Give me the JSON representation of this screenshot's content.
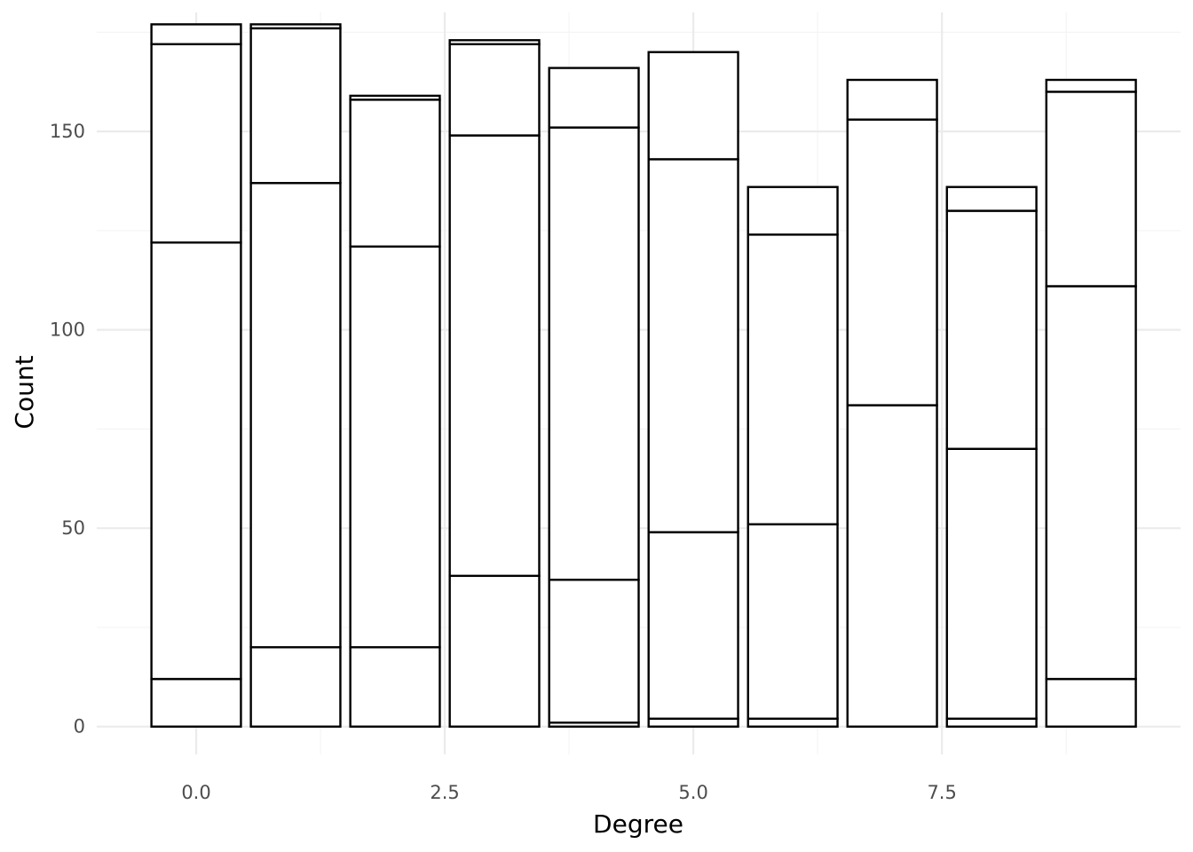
{
  "chart_data": {
    "type": "bar",
    "stacked": true,
    "title": "",
    "xlabel": "Degree",
    "ylabel": "Count",
    "x": [
      0,
      1,
      2,
      3,
      4,
      5,
      6,
      7,
      8,
      9
    ],
    "stack_boundaries": [
      [
        12,
        122,
        172,
        177
      ],
      [
        20,
        137,
        176,
        177
      ],
      [
        20,
        121,
        158,
        159
      ],
      [
        38,
        149,
        172,
        173
      ],
      [
        1,
        37,
        151,
        166
      ],
      [
        2,
        49,
        143,
        170
      ],
      [
        2,
        51,
        124,
        136
      ],
      [
        81,
        153,
        163
      ],
      [
        2,
        70,
        130,
        136
      ],
      [
        12,
        111,
        160,
        163
      ]
    ],
    "totals": [
      177,
      177,
      159,
      173,
      166,
      170,
      136,
      163,
      136,
      163
    ],
    "xlim": [
      -1,
      9.9
    ],
    "ylim": [
      -7,
      180
    ],
    "x_ticks": [
      0.0,
      2.5,
      5.0,
      7.5
    ],
    "x_tick_labels": [
      "0.0",
      "2.5",
      "5.0",
      "7.5"
    ],
    "y_ticks": [
      0,
      50,
      100,
      150
    ],
    "y_tick_labels": [
      "0",
      "50",
      "100",
      "150"
    ],
    "grid": true,
    "legend": "none",
    "colors": {
      "bar_fill": "#ffffff",
      "bar_stroke": "#000000",
      "grid_major": "#ebebeb",
      "grid_minor": "#f5f5f5",
      "tick_text": "#4d4d4d",
      "axis_title_text": "#000000"
    }
  }
}
